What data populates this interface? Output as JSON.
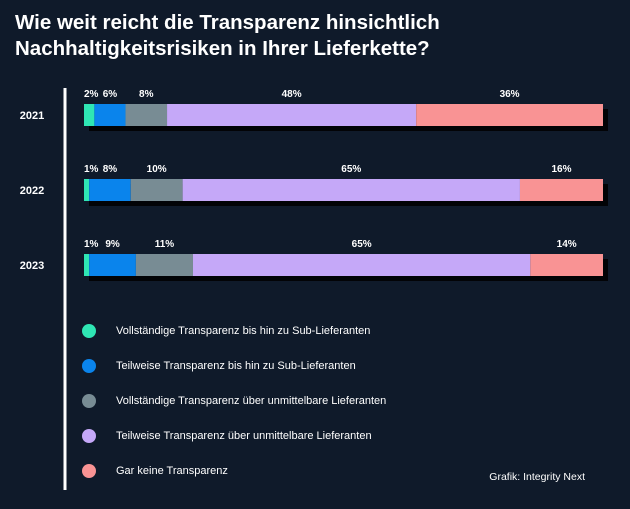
{
  "title": {
    "line1": "Wie weit reicht die Transparenz hinsichtlich",
    "line2": "Nachhaltigkeitsrisiken in Ihrer Lieferkette?"
  },
  "chart_data": {
    "type": "bar",
    "orientation": "horizontal",
    "stacked": true,
    "percent": true,
    "categories": [
      "2021",
      "2022",
      "2023"
    ],
    "series": [
      {
        "name": "Vollständige Transparenz bis hin zu Sub-Lieferanten",
        "color": "#2fe6b4",
        "values": [
          2,
          1,
          1
        ],
        "labels": [
          "2%",
          "1%",
          "1%"
        ]
      },
      {
        "name": "Teilweise Transparenz bis hin zu Sub-Lieferanten",
        "color": "#0a84ec",
        "values": [
          6,
          8,
          9
        ],
        "labels": [
          "6%",
          "8%",
          "9%"
        ]
      },
      {
        "name": "Vollständige Transparenz über unmittelbare Lieferanten",
        "color": "#788c94",
        "values": [
          8,
          10,
          11
        ],
        "labels": [
          "8%",
          "10%",
          "11%"
        ]
      },
      {
        "name": "Teilweise Transparenz über unmittelbare Lieferanten",
        "color": "#c5a8f8",
        "values": [
          48,
          65,
          65
        ],
        "labels": [
          "48%",
          "65%",
          "65%"
        ]
      },
      {
        "name": "Gar keine Transparenz",
        "color": "#f99394",
        "values": [
          36,
          16,
          14
        ],
        "labels": [
          "36%",
          "16%",
          "14%"
        ]
      }
    ],
    "legend_position": "bottom-left",
    "grid": false
  },
  "source": "Grafik: Integrity Next"
}
